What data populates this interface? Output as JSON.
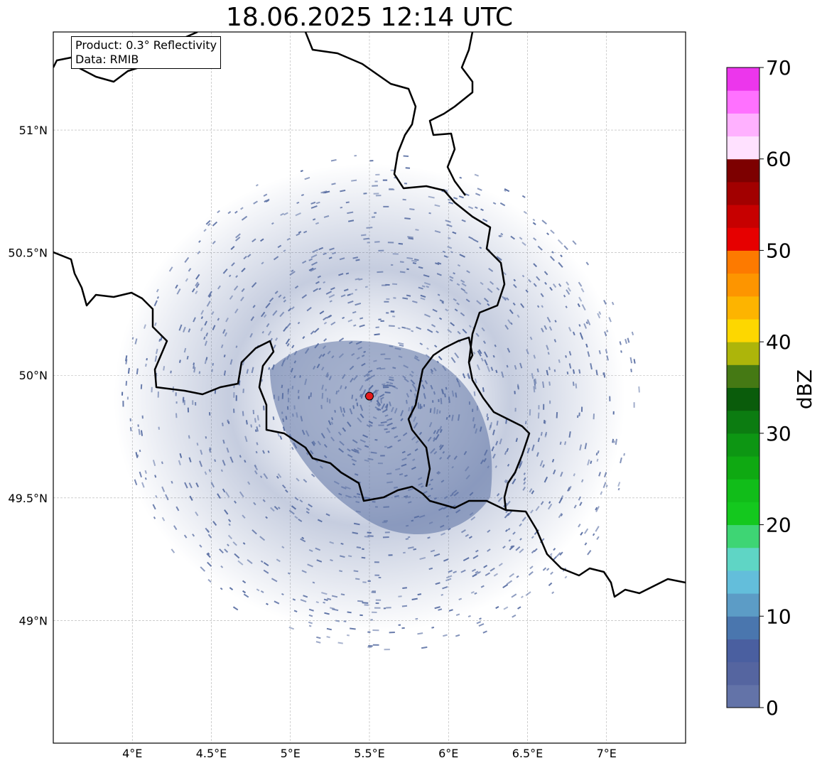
{
  "title": "18.06.2025 12:14 UTC",
  "info": {
    "product": "Product: 0.3° Reflectivity",
    "data": "Data: RMIB"
  },
  "map": {
    "lon_range": [
      3.5,
      7.5
    ],
    "lat_range": [
      48.5,
      51.4
    ],
    "x_ticks": [
      {
        "value": 4.0,
        "label": "4°E"
      },
      {
        "value": 4.5,
        "label": "4.5°E"
      },
      {
        "value": 5.0,
        "label": "5°E"
      },
      {
        "value": 5.5,
        "label": "5.5°E"
      },
      {
        "value": 6.0,
        "label": "6°E"
      },
      {
        "value": 6.5,
        "label": "6.5°E"
      },
      {
        "value": 7.0,
        "label": "7°E"
      }
    ],
    "y_ticks": [
      {
        "value": 49.0,
        "label": "49°N"
      },
      {
        "value": 49.5,
        "label": "49.5°N"
      },
      {
        "value": 50.0,
        "label": "50°N"
      },
      {
        "value": 50.5,
        "label": "50.5°N"
      },
      {
        "value": 51.0,
        "label": "51°N"
      }
    ],
    "radar_site": {
      "lon": 5.5,
      "lat": 49.915,
      "color": "#e41a1c"
    },
    "echo_color": "#5a6fa3"
  },
  "colorbar": {
    "label": "dBZ",
    "min": 0,
    "max": 70,
    "ticks": [
      0,
      10,
      20,
      30,
      40,
      50,
      60,
      70
    ],
    "colors": [
      "#6373a8",
      "#5565a0",
      "#4a5fa0",
      "#4a76ae",
      "#5c9cc6",
      "#63bedb",
      "#5fd5c5",
      "#3ed574",
      "#14c81e",
      "#11bd19",
      "#0fa912",
      "#0d9613",
      "#0c7c11",
      "#0a5c0b",
      "#457914",
      "#adb50a",
      "#fdd700",
      "#fdb400",
      "#fd9500",
      "#fd7a00",
      "#e60000",
      "#c70000",
      "#a20000",
      "#7d0000",
      "#ffe1ff",
      "#ffb1ff",
      "#ff71ff",
      "#ec36ec"
    ]
  }
}
